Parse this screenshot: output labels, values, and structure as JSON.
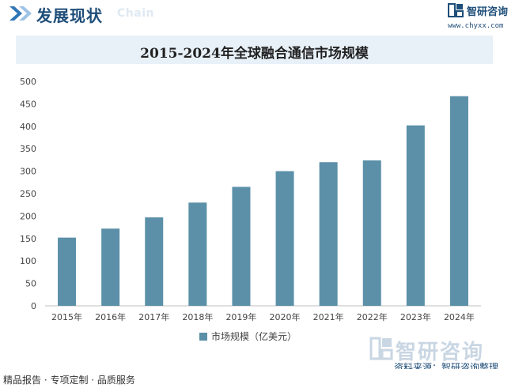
{
  "header": {
    "title": "发展现状",
    "subtitle": "Chain",
    "brand_name": "智研咨询",
    "brand_url": "www.chyxx.com"
  },
  "chart_data": {
    "type": "bar",
    "title": "2015-2024年全球融合通信市场规模",
    "categories": [
      "2015年",
      "2016年",
      "2017年",
      "2018年",
      "2019年",
      "2020年",
      "2021年",
      "2022年",
      "2023年",
      "2024年"
    ],
    "series": [
      {
        "name": "市场规模（亿美元）",
        "values": [
          152,
          172,
          197,
          230,
          265,
          300,
          320,
          324,
          402,
          467
        ]
      }
    ],
    "ylim": [
      0,
      500
    ],
    "yticks": [
      0,
      50,
      100,
      150,
      200,
      250,
      300,
      350,
      400,
      450,
      500
    ],
    "grid": false,
    "legend": "bottom-center",
    "bar_color": "#5b90a8"
  },
  "watermark": "智研咨询",
  "source": "资料来源：智研咨询整理",
  "footer": "精品报告 · 专项定制 · 品质服务"
}
